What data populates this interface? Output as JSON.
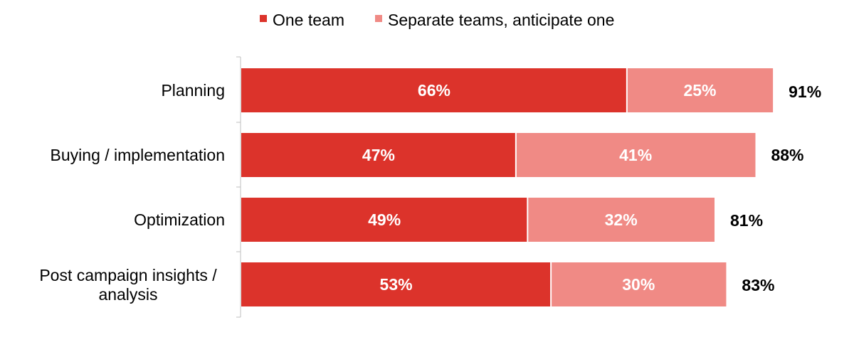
{
  "chart_data": {
    "type": "bar",
    "orientation": "horizontal",
    "stacked": true,
    "categories": [
      "Planning",
      "Buying / implementation",
      "Optimization",
      "Post campaign insights / analysis"
    ],
    "series": [
      {
        "name": "One team",
        "color": "#DC332B",
        "values": [
          66,
          47,
          49,
          53
        ],
        "labels": [
          "66%",
          "47%",
          "49%",
          "53%"
        ]
      },
      {
        "name": "Separate teams, anticipate one",
        "color": "#F08A85",
        "values": [
          25,
          41,
          32,
          30
        ],
        "labels": [
          "25%",
          "41%",
          "32%",
          "30%"
        ]
      }
    ],
    "totals": [
      "91%",
      "88%",
      "81%",
      "83%"
    ],
    "xlim": [
      0,
      100
    ],
    "legend": "top-center",
    "grid": false
  }
}
